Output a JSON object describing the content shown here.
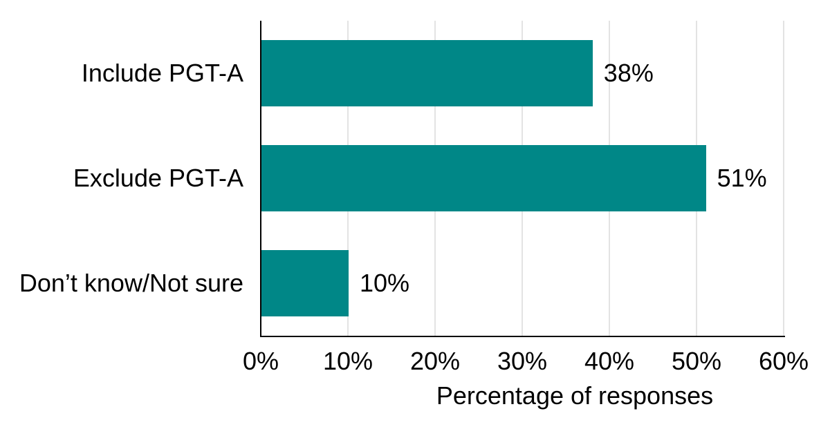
{
  "chart_data": {
    "type": "bar",
    "orientation": "horizontal",
    "title": "",
    "xlabel": "Percentage of responses",
    "ylabel": "",
    "categories": [
      "Include PGT-A",
      "Exclude PGT-A",
      "Don’t know/Not sure"
    ],
    "values": [
      38,
      51,
      10
    ],
    "value_labels": [
      "38%",
      "51%",
      "10%"
    ],
    "xlim": [
      0,
      60
    ],
    "x_tick_values": [
      0,
      10,
      20,
      30,
      40,
      50,
      60
    ],
    "x_tick_labels": [
      "0%",
      "10%",
      "20%",
      "30%",
      "40%",
      "50%",
      "60%"
    ],
    "grid": true,
    "legend": "none",
    "colors": {
      "bar": "#008787",
      "axis": "#000000",
      "gridline": "#e3e3e3",
      "text": "#000000",
      "background": "#ffffff"
    }
  }
}
